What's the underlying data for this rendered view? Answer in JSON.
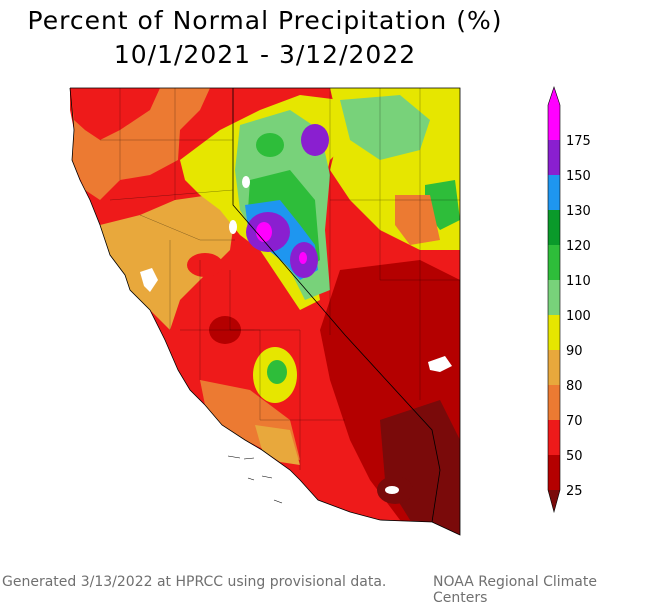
{
  "title": {
    "line1": "Percent of Normal Precipitation (%)",
    "line2": "10/1/2021 - 3/12/2022"
  },
  "legend": {
    "levels": [
      {
        "label": "175",
        "color": "#ff00ff"
      },
      {
        "label": "150",
        "color": "#8a1fd0"
      },
      {
        "label": "130",
        "color": "#1e96f0"
      },
      {
        "label": "120",
        "color": "#0a9a2a"
      },
      {
        "label": "110",
        "color": "#2ebd3a"
      },
      {
        "label": "100",
        "color": "#78d27a"
      },
      {
        "label": "90",
        "color": "#e6e600"
      },
      {
        "label": "80",
        "color": "#e8a83c"
      },
      {
        "label": "70",
        "color": "#ec7a32"
      },
      {
        "label": "50",
        "color": "#ee1a1a"
      },
      {
        "label": "25",
        "color": "#b40000"
      }
    ],
    "bottom_color": "#7a0a0a"
  },
  "colors": {
    "extreme_dry": "#7a0a0a",
    "very_dry": "#b40000",
    "dry": "#ee1a1a",
    "below": "#ec7a32",
    "near_below": "#e8a83c",
    "normal_low": "#e6e600",
    "normal": "#78d27a",
    "above": "#2ebd3a",
    "well_above": "#0a9a2a",
    "high": "#1e96f0",
    "very_high": "#8a1fd0",
    "extreme_high": "#ff00ff"
  },
  "footer": {
    "left": "Generated 3/13/2022 at HPRCC using provisional data.",
    "right": "NOAA Regional Climate Centers"
  }
}
